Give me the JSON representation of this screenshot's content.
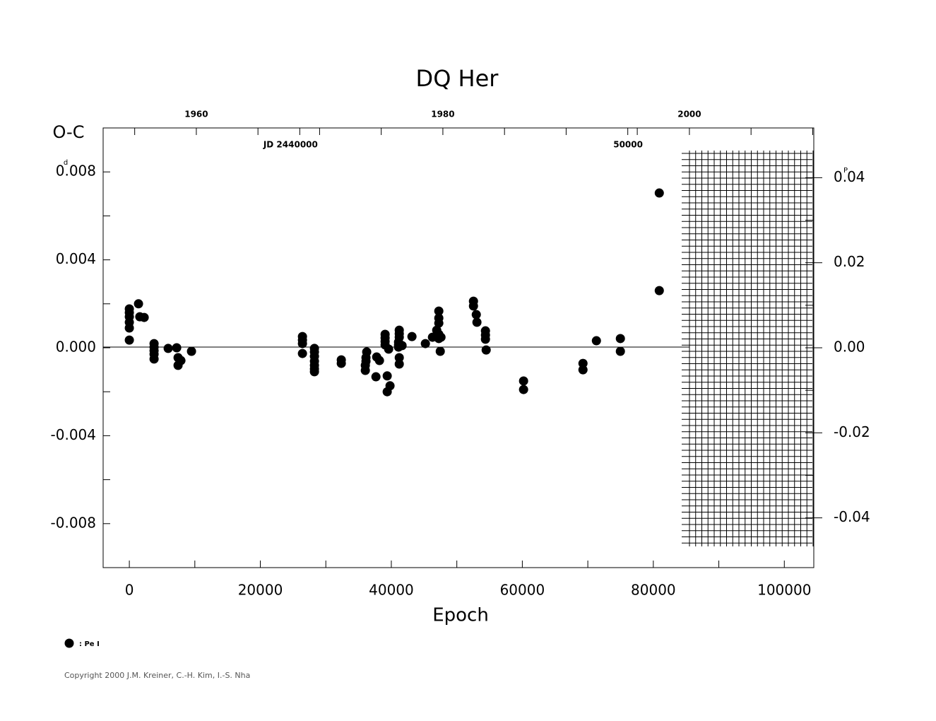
{
  "chart_data": {
    "type": "scatter",
    "title": "DQ Her",
    "x_label": "Epoch",
    "y_label": "O-C",
    "y_unit": "d",
    "y2_unit": "P",
    "xlim": [
      -4000,
      104500
    ],
    "ylim": [
      -0.01,
      0.01
    ],
    "y2lim": [
      -0.0517,
      0.0517
    ],
    "xticks": [
      0,
      20000,
      40000,
      60000,
      80000,
      100000
    ],
    "xminor": [
      10000,
      30000,
      50000,
      70000,
      90000
    ],
    "yticks": [
      {
        "value": 0.008,
        "label": "0.008"
      },
      {
        "value": 0.004,
        "label": "0.004"
      },
      {
        "value": 0,
        "label": "0.000"
      },
      {
        "value": -0.004,
        "label": "-0.004"
      },
      {
        "value": -0.008,
        "label": "-0.008"
      }
    ],
    "yminor": [
      0.006,
      0.002,
      -0.002,
      -0.006
    ],
    "y2ticks": [
      {
        "value": 0.04,
        "label": "0.04"
      },
      {
        "value": 0.02,
        "label": "0.02"
      },
      {
        "value": 0,
        "label": "0.00"
      },
      {
        "value": -0.02,
        "label": "-0.02"
      },
      {
        "value": -0.04,
        "label": "-0.04"
      }
    ],
    "y2minor": [
      0.03,
      0.01,
      -0.01,
      -0.03
    ],
    "x2lim": [
      1952.44,
      2010.09
    ],
    "x2ticks": [
      1960,
      1980,
      2000
    ],
    "x2minor": [
      1955,
      1965,
      1970,
      1975,
      1985,
      1990,
      1995,
      2005,
      2010
    ],
    "jd_ticks": [
      {
        "value": 2440000,
        "label": "JD 2440000"
      },
      {
        "value": 2450000,
        "label": "50000"
      }
    ],
    "series": [
      {
        "name": ": Pe I",
        "color": "#000000",
        "x": [
          0,
          0,
          0,
          0,
          0,
          0,
          1400,
          1600,
          2265,
          3776,
          3776,
          3776,
          3776,
          3776,
          5930,
          7230,
          7440,
          7440,
          7875,
          9490,
          26430,
          26430,
          26430,
          26430,
          28260,
          28260,
          28260,
          28260,
          28260,
          28260,
          28260,
          32360,
          32360,
          36030,
          36030,
          36130,
          36130,
          36240,
          37650,
          37760,
          38190,
          39050,
          39050,
          39050,
          39050,
          39370,
          39370,
          39590,
          39800,
          41210,
          41210,
          41210,
          41100,
          41100,
          41100,
          41210,
          41210,
          41640,
          43150,
          45200,
          46280,
          46930,
          47250,
          47250,
          47250,
          47250,
          47250,
          47470,
          47580,
          52540,
          52540,
          52970,
          53070,
          54370,
          54370,
          54370,
          54480,
          60190,
          60190,
          69260,
          69260,
          71310,
          74970,
          74970,
          80910,
          80910
        ],
        "y": [
          0.00177,
          0.0016,
          0.00141,
          0.00116,
          0.0009,
          0.00035,
          0.002,
          0.00141,
          0.00138,
          0.00019,
          3e-05,
          -0.00013,
          -0.00029,
          -0.00051,
          -3e-05,
          0,
          -0.00045,
          -0.0008,
          -0.00058,
          -0.00016,
          0.00051,
          0.00035,
          0.00019,
          -0.00026,
          -3e-05,
          -0.00019,
          -0.00039,
          -0.00061,
          -0.0008,
          -0.00096,
          -0.00109,
          -0.00055,
          -0.00071,
          -0.0008,
          -0.00103,
          -0.00045,
          -0.00061,
          -0.00019,
          -0.00132,
          -0.00042,
          -0.00058,
          0.00061,
          0.00045,
          0.00029,
          0.00013,
          -0.002,
          -0.00128,
          -6e-05,
          -0.00173,
          0.0008,
          0.00064,
          0.00048,
          0.00026,
          0.00013,
          3e-05,
          -0.00045,
          -0.00074,
          0.0001,
          0.00051,
          0.00019,
          0.00048,
          0.0008,
          0.00167,
          0.00135,
          0.00112,
          0.00061,
          0.00042,
          -0.00016,
          0.00048,
          0.00212,
          0.0019,
          0.00151,
          0.00116,
          0.00077,
          0.00058,
          0.00039,
          -0.0001,
          -0.00151,
          -0.0019,
          -0.00071,
          -0.001,
          0.00032,
          0.00042,
          -0.00016,
          0.00704,
          0.0026
        ]
      }
    ],
    "footer": "Copyright 2000 J.M. Kreiner, C.-H. Kim, I.-S. Nha"
  }
}
